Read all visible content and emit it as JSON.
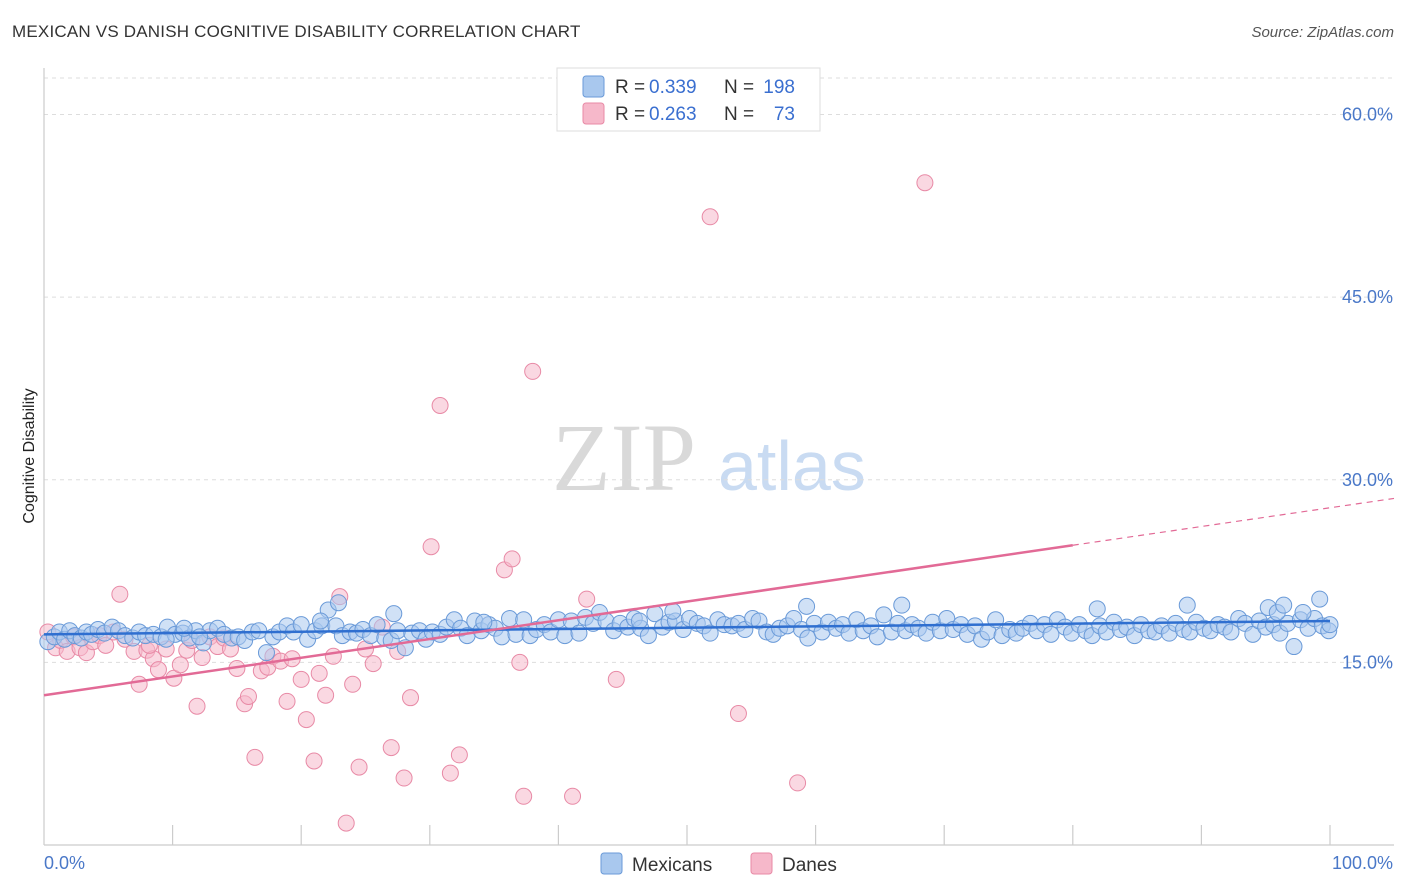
{
  "header": {
    "title": "MEXICAN VS DANISH COGNITIVE DISABILITY CORRELATION CHART",
    "source": "Source: ZipAtlas.com"
  },
  "watermark": {
    "zip": "ZIP",
    "atlas": "atlas"
  },
  "colors": {
    "mexicans_fill": "#a9c8ee",
    "mexicans_stroke": "#6a9ad8",
    "mexicans_line": "#2f6fd0",
    "danes_fill": "#f6b8ca",
    "danes_stroke": "#e88aa6",
    "danes_line": "#e26a96",
    "tick_label": "#4a78c8",
    "grid": "#dddddd"
  },
  "legend": {
    "rows": [
      {
        "r_label": "R = ",
        "r_value": "0.339",
        "n_label": "N = ",
        "n_value": "198"
      },
      {
        "r_label": "R = ",
        "r_value": "0.263",
        "n_label": "N = ",
        "n_value": "73"
      }
    ]
  },
  "bottom_legend": {
    "items": [
      "Mexicans",
      "Danes"
    ]
  },
  "chart_data": {
    "type": "scatter",
    "title": "MEXICAN VS DANISH COGNITIVE DISABILITY CORRELATION CHART",
    "xlabel": "",
    "ylabel": "Cognitive Disability",
    "xlim": [
      0,
      100
    ],
    "ylim": [
      0,
      63
    ],
    "x_tick_labels": [
      "0.0%",
      "100.0%"
    ],
    "y_ticks": [
      15,
      30,
      45,
      60
    ],
    "y_tick_labels": [
      "15.0%",
      "30.0%",
      "45.0%",
      "60.0%"
    ],
    "grid": true,
    "legend_position": "top-center",
    "series": [
      {
        "name": "Mexicans",
        "R": 0.339,
        "N": 198,
        "trend": {
          "x": [
            0,
            100
          ],
          "y": [
            17.3,
            18.4
          ],
          "dashed_from": null
        },
        "points": [
          [
            0.3,
            16.7
          ],
          [
            0.8,
            17.1
          ],
          [
            1.2,
            17.5
          ],
          [
            1.6,
            16.9
          ],
          [
            2.0,
            17.6
          ],
          [
            2.4,
            17.2
          ],
          [
            2.9,
            17.0
          ],
          [
            3.3,
            17.5
          ],
          [
            3.7,
            17.3
          ],
          [
            4.2,
            17.7
          ],
          [
            4.7,
            17.4
          ],
          [
            5.3,
            17.9
          ],
          [
            5.8,
            17.6
          ],
          [
            6.3,
            17.2
          ],
          [
            6.9,
            17.0
          ],
          [
            7.4,
            17.5
          ],
          [
            7.9,
            17.2
          ],
          [
            8.5,
            17.3
          ],
          [
            9.1,
            17.1
          ],
          [
            9.6,
            17.9
          ],
          [
            10.2,
            17.3
          ],
          [
            10.8,
            17.4
          ],
          [
            11.3,
            17.0
          ],
          [
            11.8,
            17.6
          ],
          [
            12.4,
            16.6
          ],
          [
            12.9,
            17.6
          ],
          [
            13.5,
            17.8
          ],
          [
            14.0,
            17.3
          ],
          [
            14.6,
            17.0
          ],
          [
            15.1,
            17.1
          ],
          [
            15.6,
            16.8
          ],
          [
            16.2,
            17.5
          ],
          [
            16.7,
            17.6
          ],
          [
            17.3,
            15.8
          ],
          [
            17.8,
            17.1
          ],
          [
            18.3,
            17.5
          ],
          [
            18.9,
            18.0
          ],
          [
            19.4,
            17.5
          ],
          [
            20.0,
            18.1
          ],
          [
            20.5,
            16.9
          ],
          [
            21.1,
            17.6
          ],
          [
            21.6,
            18.0
          ],
          [
            22.1,
            19.3
          ],
          [
            22.7,
            18.0
          ],
          [
            23.2,
            17.2
          ],
          [
            23.8,
            17.5
          ],
          [
            24.3,
            17.4
          ],
          [
            24.8,
            17.7
          ],
          [
            25.4,
            17.2
          ],
          [
            25.9,
            18.1
          ],
          [
            26.5,
            17.0
          ],
          [
            27.0,
            16.8
          ],
          [
            27.5,
            17.6
          ],
          [
            28.1,
            16.2
          ],
          [
            28.6,
            17.4
          ],
          [
            29.2,
            17.6
          ],
          [
            29.7,
            16.9
          ],
          [
            30.2,
            17.5
          ],
          [
            30.8,
            17.3
          ],
          [
            31.3,
            17.9
          ],
          [
            31.9,
            18.5
          ],
          [
            32.4,
            17.8
          ],
          [
            32.9,
            17.2
          ],
          [
            33.5,
            18.4
          ],
          [
            34.0,
            17.6
          ],
          [
            34.6,
            18.1
          ],
          [
            35.1,
            17.8
          ],
          [
            35.6,
            17.1
          ],
          [
            36.2,
            18.6
          ],
          [
            36.7,
            17.3
          ],
          [
            37.3,
            18.5
          ],
          [
            37.8,
            17.2
          ],
          [
            38.3,
            17.7
          ],
          [
            38.9,
            18.1
          ],
          [
            39.4,
            17.5
          ],
          [
            40.0,
            18.5
          ],
          [
            40.5,
            17.2
          ],
          [
            41.0,
            18.4
          ],
          [
            41.6,
            17.4
          ],
          [
            42.1,
            18.7
          ],
          [
            42.7,
            18.2
          ],
          [
            43.2,
            19.1
          ],
          [
            43.7,
            18.4
          ],
          [
            44.3,
            17.6
          ],
          [
            44.8,
            18.2
          ],
          [
            45.4,
            17.9
          ],
          [
            45.9,
            18.6
          ],
          [
            46.4,
            17.8
          ],
          [
            47.0,
            17.2
          ],
          [
            47.5,
            19.0
          ],
          [
            48.1,
            17.9
          ],
          [
            48.6,
            18.3
          ],
          [
            49.1,
            18.4
          ],
          [
            49.7,
            17.7
          ],
          [
            50.2,
            18.6
          ],
          [
            50.8,
            18.2
          ],
          [
            51.3,
            18.0
          ],
          [
            51.8,
            17.4
          ],
          [
            52.4,
            18.5
          ],
          [
            52.9,
            18.1
          ],
          [
            53.5,
            18.0
          ],
          [
            54.0,
            18.2
          ],
          [
            54.5,
            17.7
          ],
          [
            55.1,
            18.6
          ],
          [
            55.6,
            18.4
          ],
          [
            56.2,
            17.5
          ],
          [
            56.7,
            17.3
          ],
          [
            57.2,
            17.8
          ],
          [
            57.8,
            18.0
          ],
          [
            58.3,
            18.6
          ],
          [
            58.9,
            17.7
          ],
          [
            59.4,
            17.0
          ],
          [
            59.9,
            18.2
          ],
          [
            60.5,
            17.5
          ],
          [
            61.0,
            18.3
          ],
          [
            61.6,
            17.8
          ],
          [
            62.1,
            18.1
          ],
          [
            62.6,
            17.4
          ],
          [
            63.2,
            18.5
          ],
          [
            63.7,
            17.6
          ],
          [
            64.3,
            18.0
          ],
          [
            64.8,
            17.1
          ],
          [
            65.3,
            18.9
          ],
          [
            65.9,
            17.5
          ],
          [
            66.4,
            18.2
          ],
          [
            67.0,
            17.6
          ],
          [
            67.5,
            18.1
          ],
          [
            68.0,
            17.8
          ],
          [
            68.6,
            17.4
          ],
          [
            69.1,
            18.3
          ],
          [
            69.7,
            17.6
          ],
          [
            70.2,
            18.6
          ],
          [
            70.7,
            17.7
          ],
          [
            71.3,
            18.1
          ],
          [
            71.8,
            17.3
          ],
          [
            72.4,
            18.0
          ],
          [
            72.9,
            16.9
          ],
          [
            73.4,
            17.5
          ],
          [
            74.0,
            18.5
          ],
          [
            74.5,
            17.2
          ],
          [
            75.1,
            17.7
          ],
          [
            75.6,
            17.4
          ],
          [
            76.1,
            17.8
          ],
          [
            76.7,
            18.2
          ],
          [
            77.2,
            17.6
          ],
          [
            77.8,
            18.1
          ],
          [
            78.3,
            17.3
          ],
          [
            78.8,
            18.5
          ],
          [
            79.4,
            17.9
          ],
          [
            79.9,
            17.4
          ],
          [
            80.5,
            18.1
          ],
          [
            81.0,
            17.6
          ],
          [
            81.5,
            17.2
          ],
          [
            82.1,
            18.0
          ],
          [
            82.6,
            17.5
          ],
          [
            83.2,
            18.3
          ],
          [
            83.7,
            17.7
          ],
          [
            84.2,
            17.9
          ],
          [
            84.8,
            17.2
          ],
          [
            85.3,
            18.1
          ],
          [
            85.9,
            17.6
          ],
          [
            86.4,
            17.5
          ],
          [
            86.9,
            18.0
          ],
          [
            87.5,
            17.4
          ],
          [
            88.0,
            18.2
          ],
          [
            88.6,
            17.7
          ],
          [
            89.1,
            17.5
          ],
          [
            89.6,
            18.3
          ],
          [
            90.2,
            17.8
          ],
          [
            90.7,
            17.6
          ],
          [
            91.3,
            18.1
          ],
          [
            91.8,
            17.9
          ],
          [
            92.3,
            17.5
          ],
          [
            92.9,
            18.6
          ],
          [
            93.4,
            18.2
          ],
          [
            94.0,
            17.3
          ],
          [
            94.5,
            18.4
          ],
          [
            95.0,
            17.9
          ],
          [
            95.6,
            18.1
          ],
          [
            96.1,
            17.4
          ],
          [
            96.7,
            18.2
          ],
          [
            97.2,
            16.3
          ],
          [
            97.7,
            18.5
          ],
          [
            98.3,
            17.8
          ],
          [
            98.8,
            18.6
          ],
          [
            99.4,
            18.0
          ],
          [
            99.9,
            17.6
          ],
          [
            48.9,
            19.2
          ],
          [
            27.2,
            19.0
          ],
          [
            59.3,
            19.6
          ],
          [
            34.2,
            18.3
          ],
          [
            21.5,
            18.4
          ],
          [
            46.3,
            18.4
          ],
          [
            66.7,
            19.7
          ],
          [
            81.9,
            19.4
          ],
          [
            88.9,
            19.7
          ],
          [
            95.2,
            19.5
          ],
          [
            95.9,
            19.1
          ],
          [
            96.4,
            19.7
          ],
          [
            97.9,
            19.1
          ],
          [
            99.2,
            20.2
          ],
          [
            100.0,
            18.1
          ],
          [
            12.1,
            17.1
          ],
          [
            9.5,
            16.9
          ],
          [
            10.9,
            17.8
          ],
          [
            22.9,
            19.9
          ]
        ]
      },
      {
        "name": "Danes",
        "R": 0.263,
        "N": 73,
        "trend": {
          "x": [
            0,
            100
          ],
          "y": [
            12.3,
            27.7
          ],
          "dashed_from": 80
        },
        "points": [
          [
            0.3,
            17.5
          ],
          [
            0.9,
            16.2
          ],
          [
            1.3,
            16.8
          ],
          [
            1.8,
            15.9
          ],
          [
            2.3,
            17.1
          ],
          [
            2.8,
            16.2
          ],
          [
            3.3,
            15.8
          ],
          [
            3.8,
            16.7
          ],
          [
            4.3,
            17.2
          ],
          [
            4.8,
            16.4
          ],
          [
            5.4,
            17.5
          ],
          [
            5.9,
            20.6
          ],
          [
            6.3,
            16.9
          ],
          [
            7.0,
            15.9
          ],
          [
            7.4,
            13.2
          ],
          [
            8.0,
            16.0
          ],
          [
            8.5,
            15.3
          ],
          [
            8.9,
            14.4
          ],
          [
            9.5,
            16.1
          ],
          [
            10.1,
            13.7
          ],
          [
            10.6,
            14.8
          ],
          [
            11.1,
            16.0
          ],
          [
            11.5,
            16.8
          ],
          [
            11.9,
            11.4
          ],
          [
            12.3,
            15.4
          ],
          [
            12.9,
            17.1
          ],
          [
            13.5,
            16.3
          ],
          [
            14.0,
            17.0
          ],
          [
            14.5,
            16.1
          ],
          [
            15.0,
            14.5
          ],
          [
            15.6,
            11.6
          ],
          [
            15.9,
            12.2
          ],
          [
            16.4,
            7.2
          ],
          [
            16.9,
            14.3
          ],
          [
            17.4,
            14.6
          ],
          [
            17.8,
            15.5
          ],
          [
            18.4,
            15.1
          ],
          [
            18.9,
            11.8
          ],
          [
            19.3,
            15.3
          ],
          [
            20.0,
            13.6
          ],
          [
            20.4,
            10.3
          ],
          [
            21.0,
            6.9
          ],
          [
            21.4,
            14.1
          ],
          [
            21.9,
            12.3
          ],
          [
            22.5,
            15.5
          ],
          [
            23.0,
            20.4
          ],
          [
            23.5,
            1.8
          ],
          [
            24.0,
            13.2
          ],
          [
            24.5,
            6.4
          ],
          [
            25.0,
            16.1
          ],
          [
            25.6,
            14.9
          ],
          [
            26.3,
            17.9
          ],
          [
            27.0,
            8.0
          ],
          [
            27.5,
            15.9
          ],
          [
            28.0,
            5.5
          ],
          [
            28.5,
            12.1
          ],
          [
            30.8,
            36.1
          ],
          [
            31.6,
            5.9
          ],
          [
            32.3,
            7.4
          ],
          [
            35.8,
            22.6
          ],
          [
            36.4,
            23.5
          ],
          [
            37.0,
            15.0
          ],
          [
            37.3,
            4.0
          ],
          [
            38.0,
            38.9
          ],
          [
            41.1,
            4.0
          ],
          [
            42.2,
            20.2
          ],
          [
            44.5,
            13.6
          ],
          [
            51.8,
            51.6
          ],
          [
            54.0,
            10.8
          ],
          [
            58.6,
            5.1
          ],
          [
            68.5,
            54.4
          ],
          [
            8.2,
            16.4
          ],
          [
            30.1,
            24.5
          ]
        ]
      }
    ]
  }
}
